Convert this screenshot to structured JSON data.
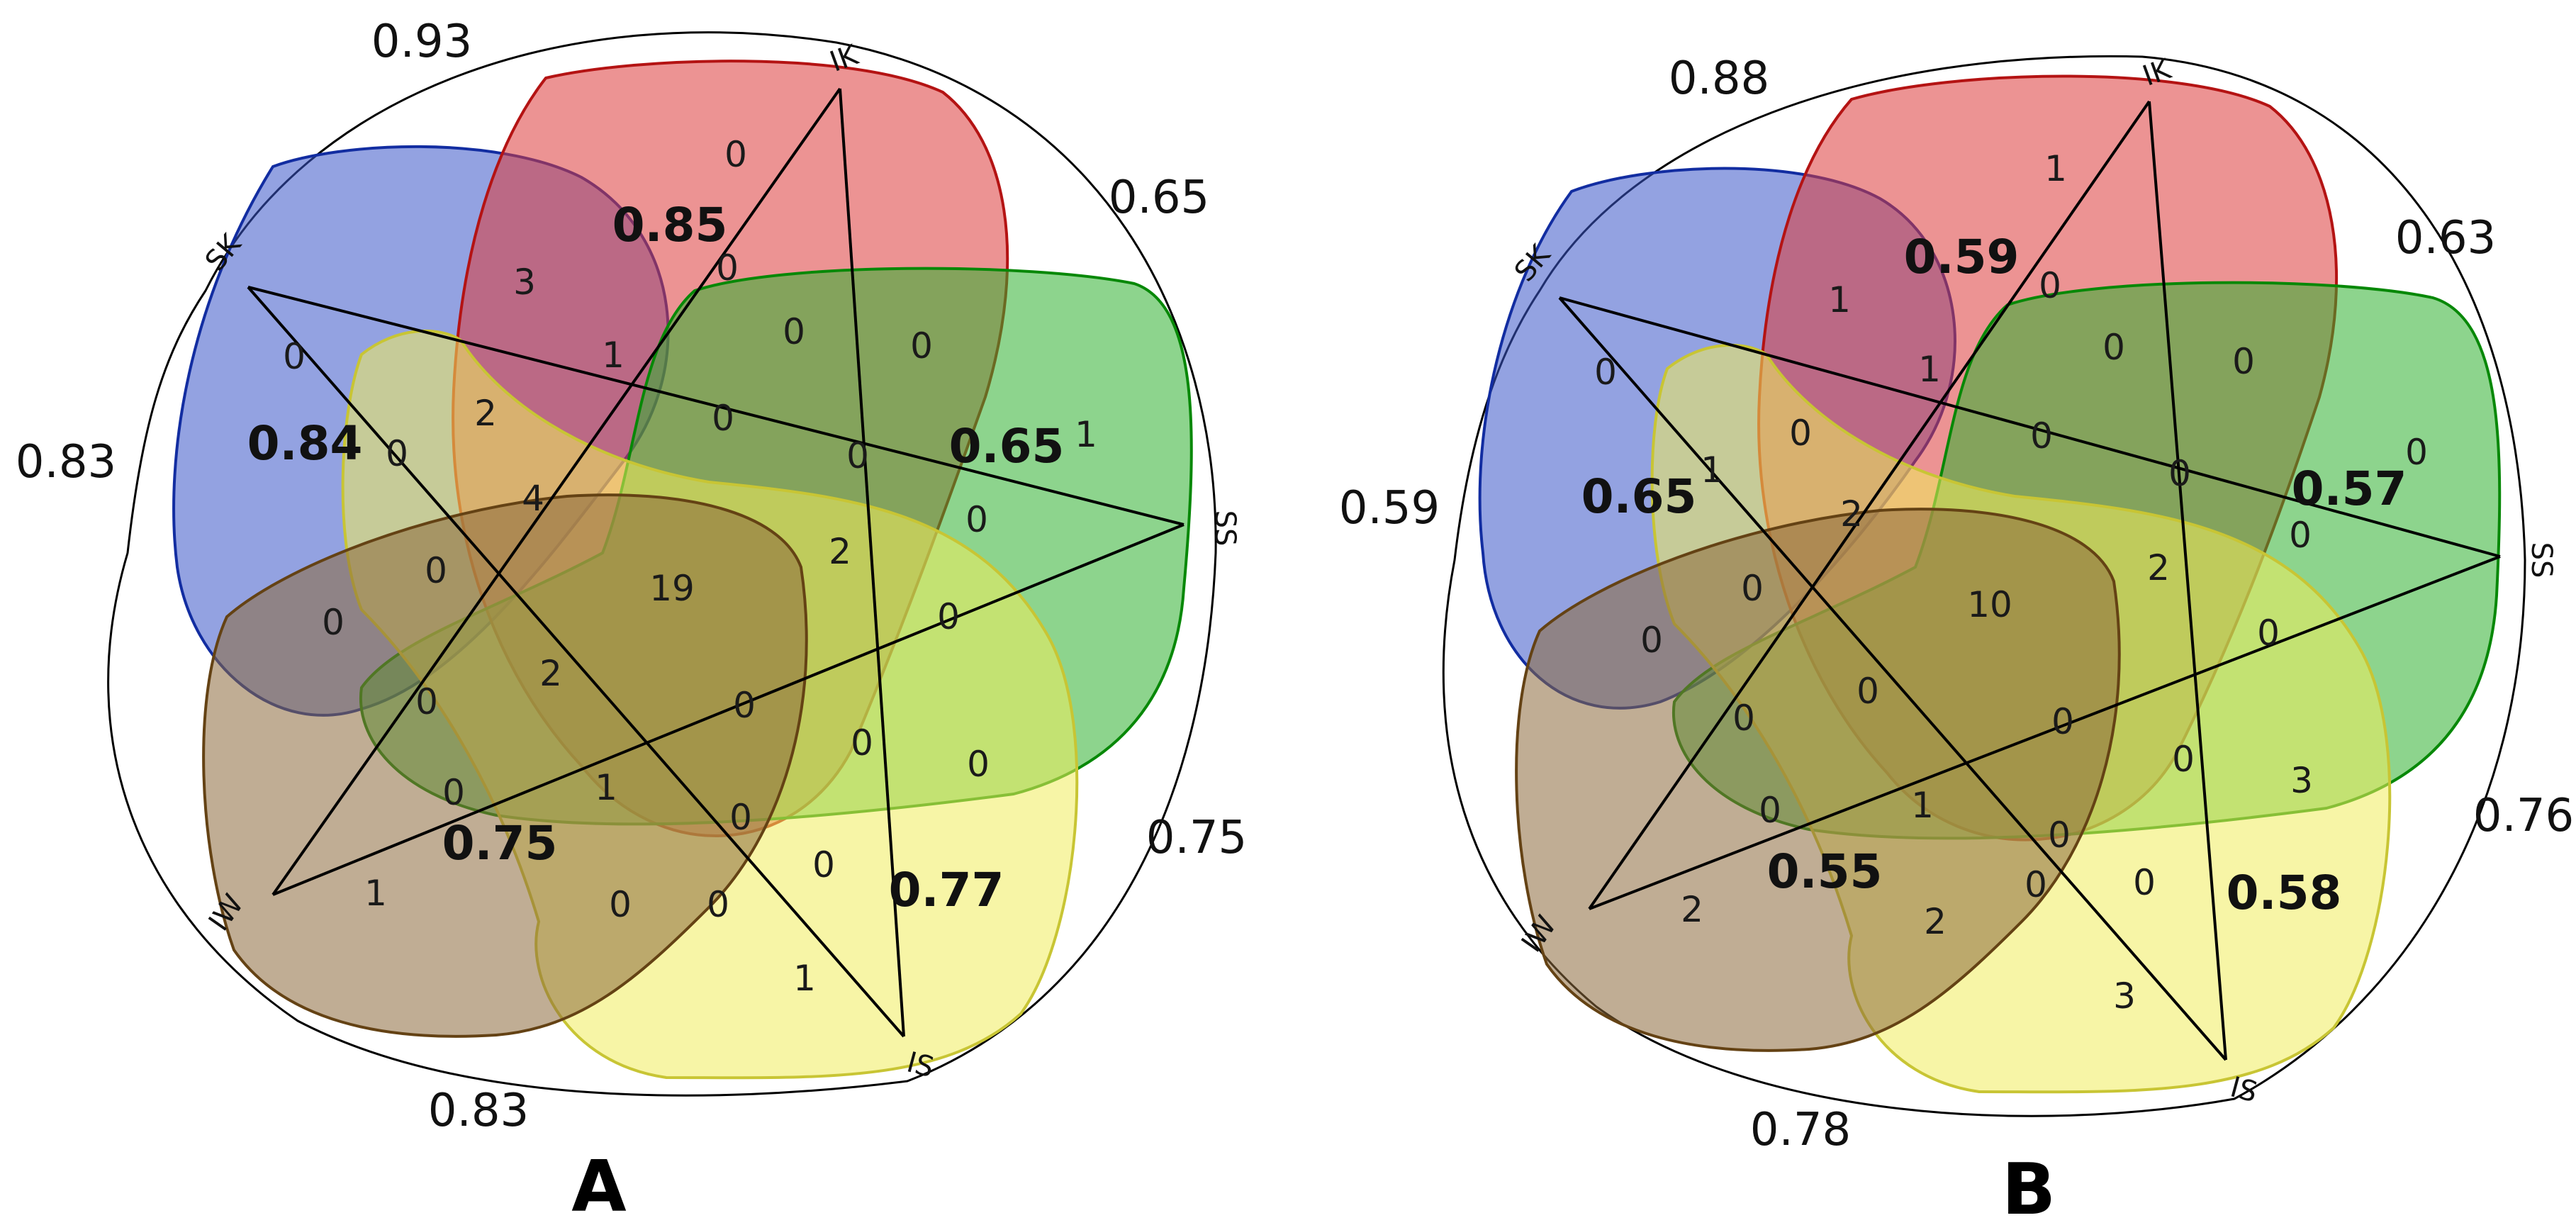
{
  "colors": {
    "SK": "#3a55c9",
    "IK": "#dc3b3b",
    "SS": "#2fb02f",
    "IS": "#f0ed5c",
    "IW": "#8c6a3c"
  },
  "panels": [
    {
      "letter": "A",
      "vertices": [
        "IK",
        "SS",
        "IS",
        "IW",
        "SK"
      ],
      "outer_values": [
        "0.93",
        "0.65",
        "0.75",
        "0.83",
        "0.83"
      ],
      "pair_values": [
        "0.85",
        "0.65",
        "0.77",
        "0.75",
        "0.84"
      ],
      "region_counts": [
        "0",
        "3",
        "0",
        "0",
        "0",
        "1",
        "1",
        "2",
        "0",
        "0",
        "0",
        "0",
        "0",
        "4",
        "19",
        "2",
        "0",
        "0",
        "0",
        "2",
        "0",
        "0",
        "0",
        "0",
        "0",
        "1",
        "0",
        "0",
        "1",
        "0",
        "0",
        "1"
      ]
    },
    {
      "letter": "B",
      "vertices": [
        "IK",
        "SS",
        "IS",
        "IW",
        "SK"
      ],
      "outer_values": [
        "0.88",
        "0.63",
        "0.76",
        "0.78",
        "0.59"
      ],
      "pair_values": [
        "0.59",
        "0.57",
        "0.58",
        "0.55",
        "0.65"
      ],
      "region_counts": [
        "1",
        "1",
        "0",
        "0",
        "0",
        "0",
        "1",
        "0",
        "0",
        "0",
        "1",
        "0",
        "0",
        "2",
        "10",
        "2",
        "0",
        "0",
        "0",
        "0",
        "0",
        "0",
        "0",
        "3",
        "0",
        "1",
        "0",
        "2",
        "2",
        "3",
        "0",
        "0"
      ]
    }
  ]
}
